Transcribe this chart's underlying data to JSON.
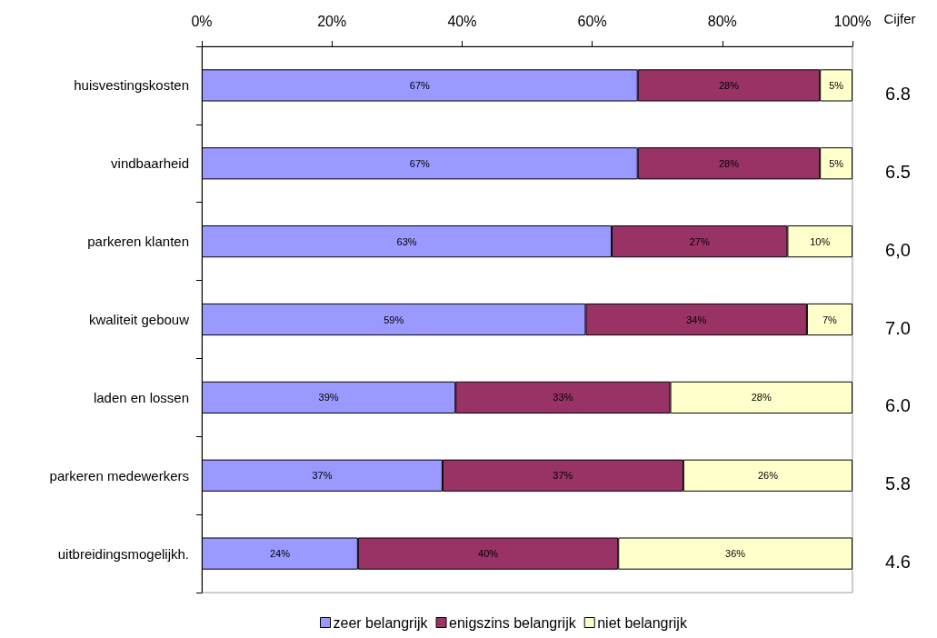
{
  "chart_data": {
    "type": "bar",
    "orientation": "horizontal",
    "stacked": true,
    "categories": [
      "huisvestingskosten",
      "vindbaarheid",
      "parkeren klanten",
      "kwaliteit gebouw",
      "laden en lossen",
      "parkeren medewerkers",
      "uitbreidingsmogelijkh."
    ],
    "series": [
      {
        "name": "zeer belangrijk",
        "color": "#9999ff",
        "values": [
          67,
          67,
          63,
          59,
          39,
          37,
          24
        ],
        "value_labels": [
          "67%",
          "67%",
          "63%",
          "59%",
          "39%",
          "37%",
          "24%"
        ]
      },
      {
        "name": "enigszins belangrijk",
        "color": "#993366",
        "values": [
          28,
          28,
          27,
          34,
          33,
          37,
          40
        ],
        "value_labels": [
          "28%",
          "28%",
          "27%",
          "34%",
          "33%",
          "37%",
          "40%"
        ]
      },
      {
        "name": "niet belangrijk",
        "color": "#ffffcc",
        "values": [
          5,
          5,
          10,
          7,
          28,
          26,
          36
        ],
        "value_labels": [
          "5%",
          "5%",
          "10%",
          "7%",
          "28%",
          "26%",
          "36%"
        ]
      }
    ],
    "xlim": [
      0,
      100
    ],
    "xticks": [
      {
        "value": 0,
        "label": "0%"
      },
      {
        "value": 20,
        "label": "20%"
      },
      {
        "value": 40,
        "label": "40%"
      },
      {
        "value": 60,
        "label": "60%"
      },
      {
        "value": 80,
        "label": "80%"
      },
      {
        "value": 100,
        "label": "100%"
      }
    ],
    "annotations": [
      "Cijfer",
      "6.8",
      "6.5",
      "6,0",
      "7.0",
      "6.0",
      "5.8",
      "4.6"
    ],
    "grid": false,
    "legend": "bottom"
  }
}
